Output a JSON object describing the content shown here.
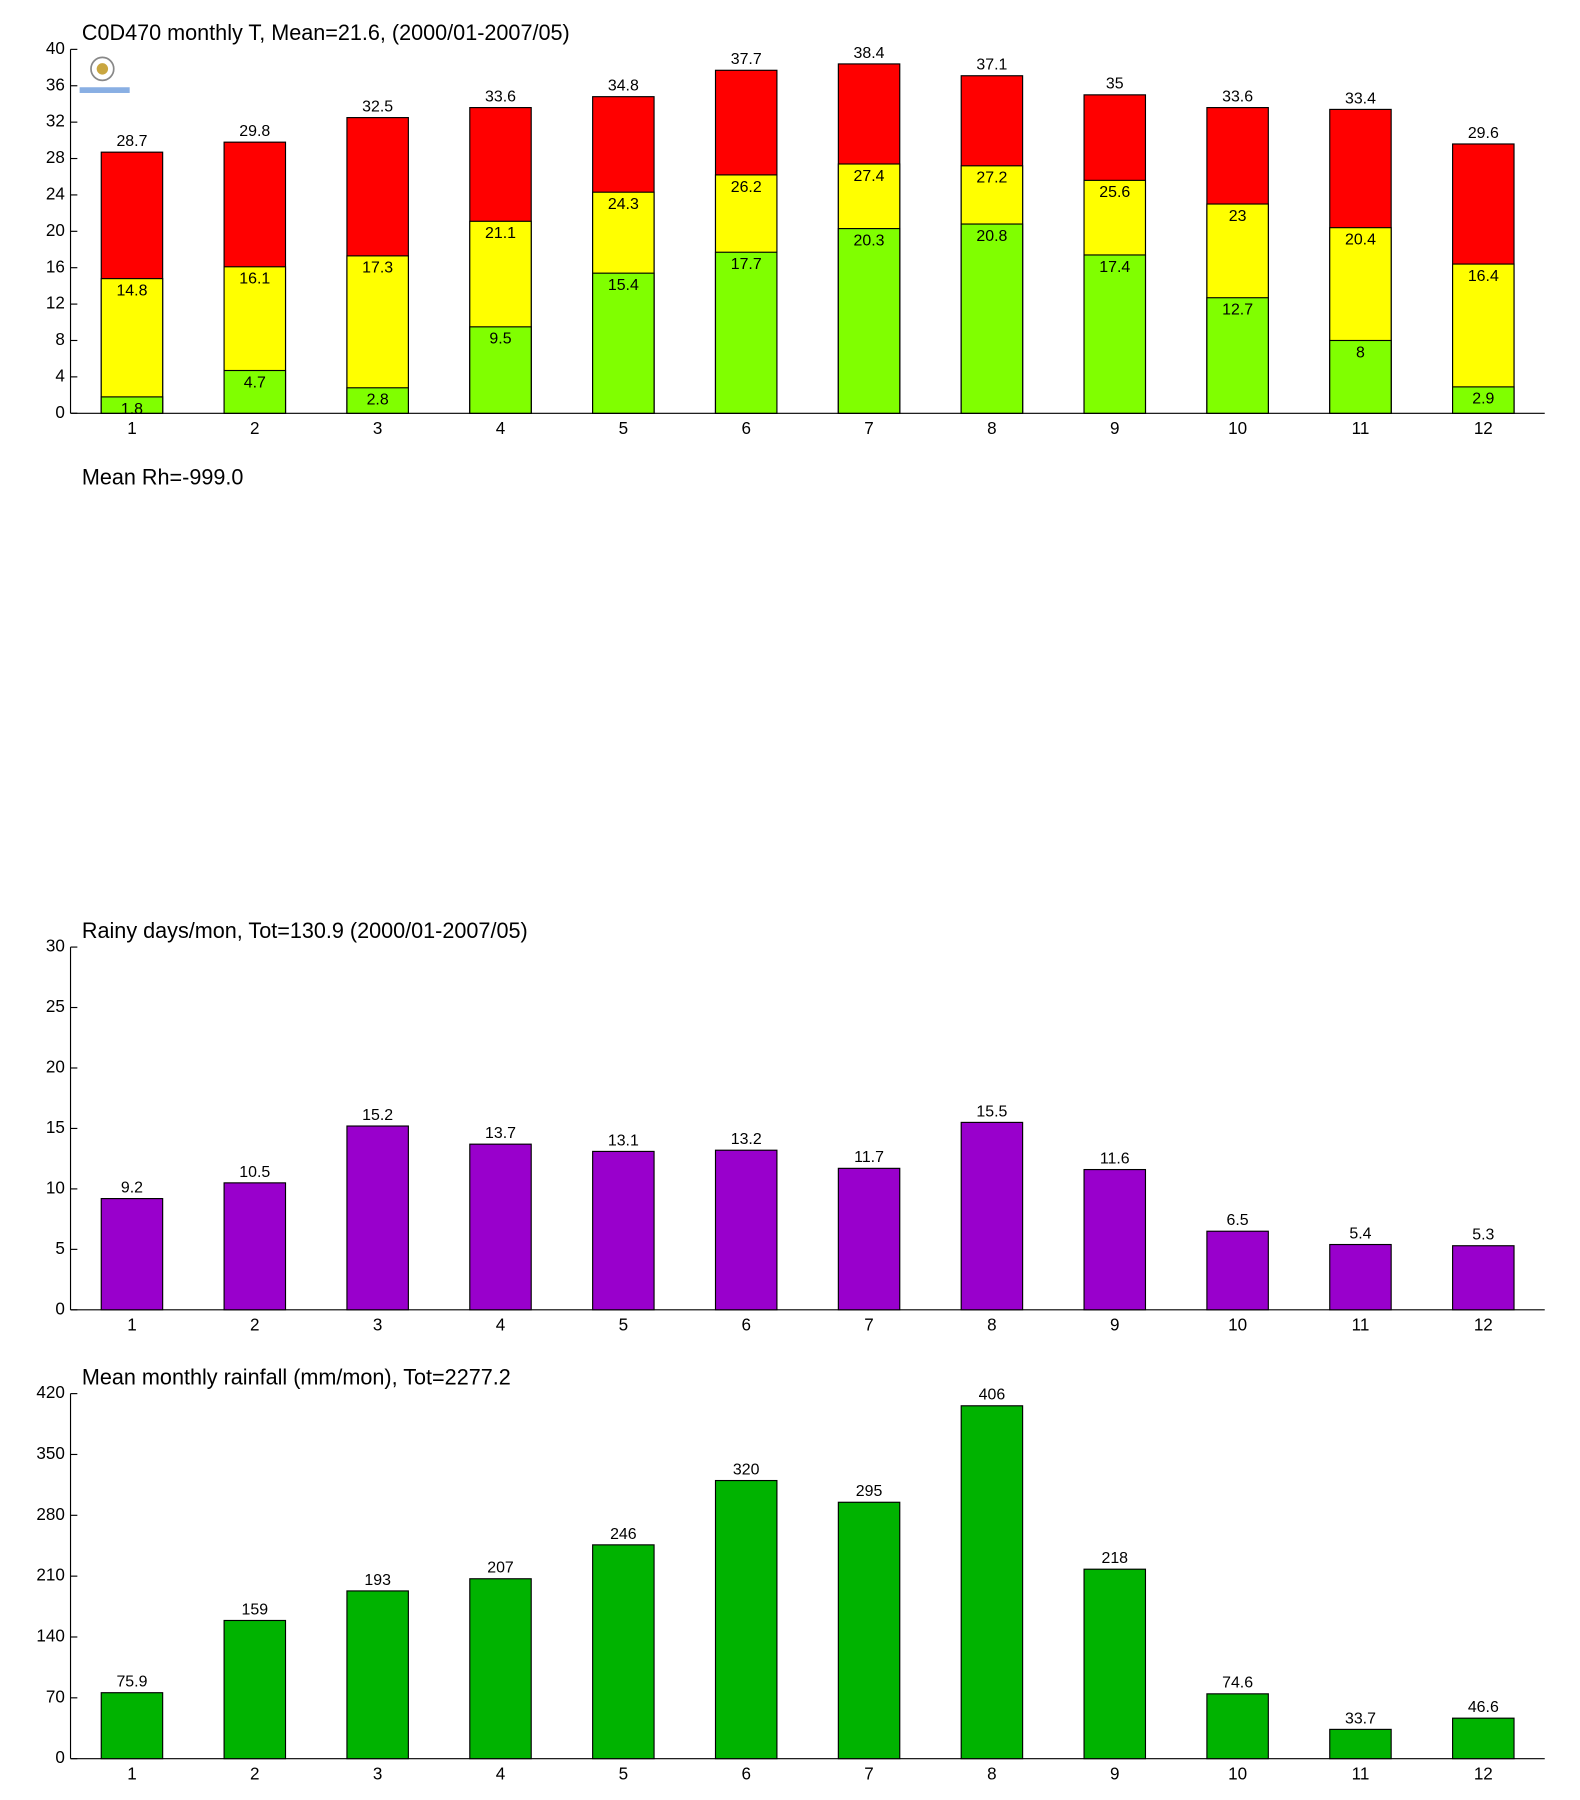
{
  "chart_data": [
    {
      "type": "overlay-bar",
      "title": "C0D470 monthly T, Mean=21.6, (2000/01-2007/05)",
      "categories": [
        "1",
        "2",
        "3",
        "4",
        "5",
        "6",
        "7",
        "8",
        "9",
        "10",
        "11",
        "12"
      ],
      "series": [
        {
          "color": "#ff0000",
          "values": [
            28.7,
            29.8,
            32.5,
            33.6,
            34.8,
            37.7,
            38.4,
            37.1,
            35,
            33.6,
            33.4,
            29.6
          ]
        },
        {
          "color": "#ffff00",
          "values": [
            14.8,
            16.1,
            17.3,
            21.1,
            24.3,
            26.2,
            27.4,
            27.2,
            25.6,
            23,
            20.4,
            16.4
          ]
        },
        {
          "color": "#80ff00",
          "values": [
            1.8,
            4.7,
            2.8,
            9.5,
            15.4,
            17.7,
            20.3,
            20.8,
            17.4,
            12.7,
            8,
            2.9
          ]
        }
      ],
      "ylim": [
        0,
        40
      ],
      "yticks": [
        0,
        4,
        8,
        12,
        16,
        20,
        24,
        28,
        32,
        36,
        40
      ]
    },
    {
      "type": "empty",
      "title": "Mean Rh=-999.0"
    },
    {
      "type": "bar",
      "title": "Rainy days/mon, Tot=130.9 (2000/01-2007/05)",
      "categories": [
        "1",
        "2",
        "3",
        "4",
        "5",
        "6",
        "7",
        "8",
        "9",
        "10",
        "11",
        "12"
      ],
      "values": [
        9.2,
        10.5,
        15.2,
        13.7,
        13.1,
        13.2,
        11.7,
        15.5,
        11.6,
        6.5,
        5.4,
        5.3
      ],
      "color": "#9900cc",
      "ylim": [
        0,
        30
      ],
      "yticks": [
        0,
        5,
        10,
        15,
        20,
        25,
        30
      ]
    },
    {
      "type": "bar",
      "title": "Mean monthly rainfall (mm/mon), Tot=2277.2",
      "categories": [
        "1",
        "2",
        "3",
        "4",
        "5",
        "6",
        "7",
        "8",
        "9",
        "10",
        "11",
        "12"
      ],
      "values": [
        75.9,
        159,
        193,
        207,
        246,
        320,
        295,
        406,
        218,
        74.6,
        33.7,
        46.6
      ],
      "color": "#00b300",
      "ylim": [
        0,
        420
      ],
      "yticks": [
        0,
        70,
        140,
        210,
        280,
        350,
        420
      ]
    }
  ]
}
